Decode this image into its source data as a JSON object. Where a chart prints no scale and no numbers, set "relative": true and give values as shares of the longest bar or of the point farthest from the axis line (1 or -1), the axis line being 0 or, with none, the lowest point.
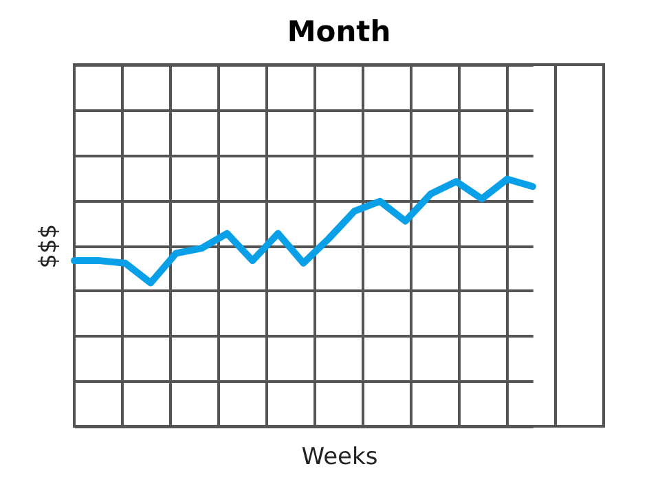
{
  "chart_data": {
    "type": "line",
    "title": "Month",
    "xlabel": "Weeks",
    "ylabel": "$$$",
    "relative": true,
    "grid": true,
    "tick_labels": false,
    "categories": [
      null,
      null,
      null,
      null,
      null,
      null,
      null,
      null,
      null,
      null,
      null,
      null,
      null,
      null,
      null,
      null,
      null,
      null,
      null
    ],
    "series": [
      {
        "color": "#0aa0e8",
        "values": [
          0.67,
          0.67,
          0.66,
          0.58,
          0.7,
          0.72,
          0.78,
          0.67,
          0.78,
          0.66,
          0.76,
          0.87,
          0.91,
          0.83,
          0.94,
          0.99,
          0.92,
          1.0,
          0.97
        ]
      }
    ]
  }
}
